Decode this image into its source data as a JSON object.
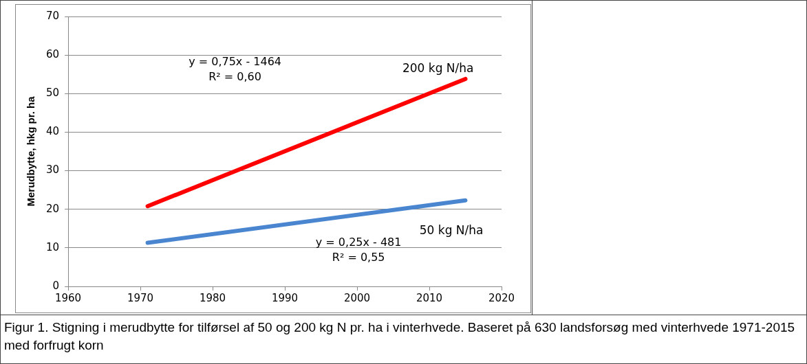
{
  "chart_data": {
    "type": "line",
    "ylabel": "Merudbytte, hkg pr. ha",
    "x": [
      1971,
      2015
    ],
    "series": [
      {
        "name": "200 kg N/ha",
        "color": "#ff0000",
        "values": [
          20.8,
          53.8
        ]
      },
      {
        "name": "50 kg N/ha",
        "color": "#4a86d0",
        "values": [
          11.3,
          22.3
        ]
      }
    ],
    "xlim": [
      1960,
      2020
    ],
    "xticks": [
      1960,
      1970,
      1980,
      1990,
      2000,
      2010,
      2020
    ],
    "ylim": [
      0,
      70
    ],
    "yticks": [
      0,
      10,
      20,
      30,
      40,
      50,
      60,
      70
    ],
    "grid": "y",
    "legend": false,
    "marker": "none",
    "line_style": "solid",
    "annotations": [
      "y = 0,75x - 1464\nR² = 0,60",
      "y = 0,25x - 481\nR² = 0,55",
      "Figur 1. Stigning i merudbytte for tilførsel af 50 og 200 kg N pr. ha i vinterhvede. Baseret på 630 landsforsøg med vinterhvede 1971-2015 med forfrugt korn"
    ]
  }
}
